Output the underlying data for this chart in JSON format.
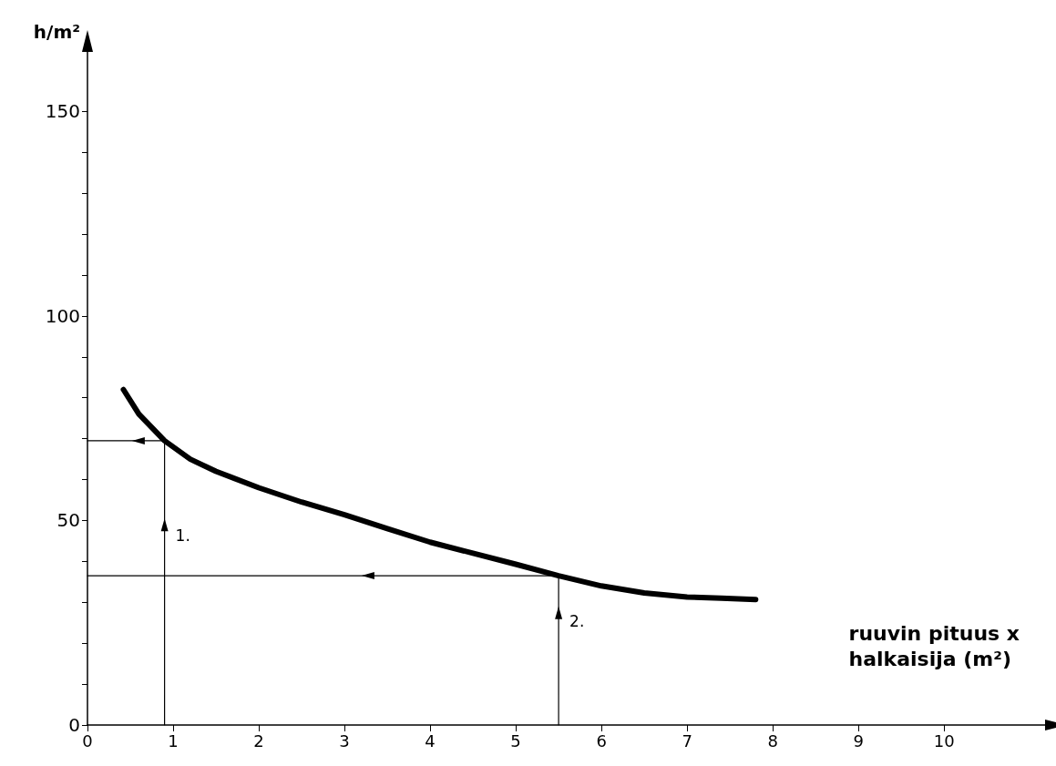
{
  "chart_data": {
    "type": "line",
    "xlabel": "ruuvin pituus x\nhalkaisija (m²)",
    "ylabel": "h/m²",
    "xlim": [
      0,
      11.2
    ],
    "xticks": [
      0,
      1,
      2,
      3,
      4,
      5,
      6,
      7,
      8,
      9,
      10
    ],
    "ylim": [
      0,
      165
    ],
    "yticks": [
      0,
      {
        "value": 10,
        "label": null
      },
      {
        "value": 20,
        "label": null
      },
      {
        "value": 30,
        "label": null
      },
      {
        "value": 40,
        "label": null
      },
      50,
      {
        "value": 60,
        "label": null
      },
      {
        "value": 70,
        "label": null
      },
      {
        "value": 80,
        "label": null
      },
      {
        "value": 90,
        "label": null
      },
      100,
      {
        "value": 110,
        "label": null
      },
      {
        "value": 120,
        "label": null
      },
      {
        "value": 130,
        "label": null
      },
      {
        "value": 140,
        "label": null
      },
      150
    ],
    "grid": false,
    "series": [
      {
        "color": "#000000",
        "x": [
          0.42,
          0.6,
          0.9,
          1.2,
          1.5,
          2,
          2.5,
          3,
          3.5,
          4,
          4.5,
          5,
          5.5,
          6,
          6.5,
          7,
          7.4,
          7.8
        ],
        "values": [
          82,
          76,
          69.5,
          65,
          62,
          58,
          54.5,
          51.4,
          48,
          44.7,
          42,
          39.3,
          36.5,
          34,
          32.3,
          31.3,
          31,
          30.7
        ]
      },
      {
        "color": "#000000",
        "x": [
          0.9,
          0.9,
          0.9,
          0.52,
          0
        ],
        "values": [
          0,
          50.5,
          69.5,
          69.5,
          69.5
        ]
      },
      {
        "color": "#000000",
        "x": [
          5.5,
          5.5,
          5.5,
          3.2,
          0
        ],
        "values": [
          0,
          29,
          36.5,
          36.5,
          36.5
        ]
      }
    ],
    "annotations": [
      {
        "text": "1.",
        "x": 0.9,
        "y": 46
      },
      {
        "text": "2.",
        "x": 5.5,
        "y": 25
      }
    ]
  }
}
